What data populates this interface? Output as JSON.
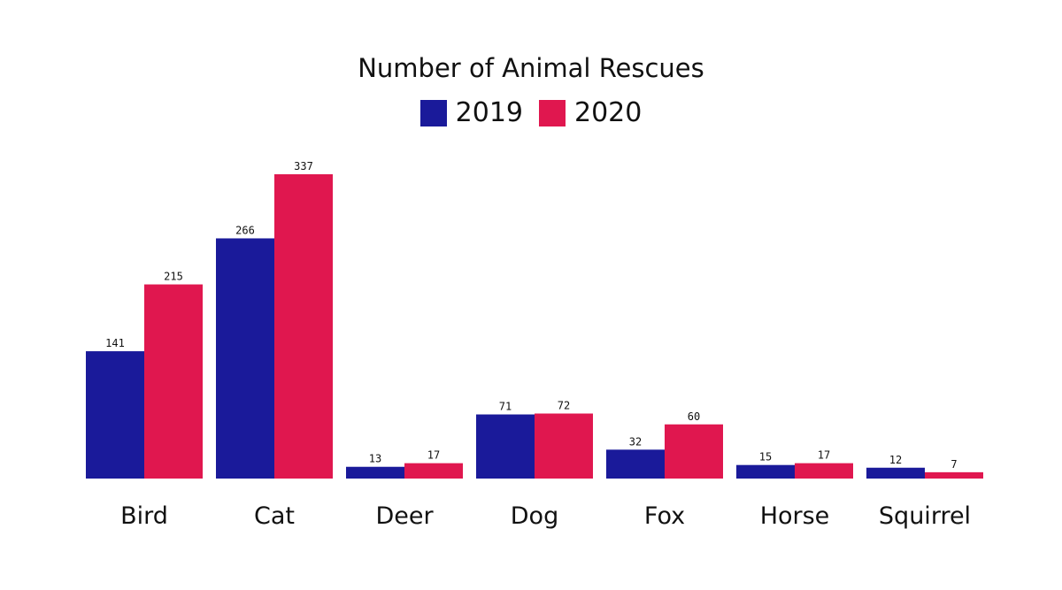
{
  "chart_data": {
    "type": "bar",
    "title": "Number of Animal Rescues",
    "categories": [
      "Bird",
      "Cat",
      "Deer",
      "Dog",
      "Fox",
      "Horse",
      "Squirrel"
    ],
    "series": [
      {
        "name": "2019",
        "color": "#1a1a9a",
        "values": [
          141,
          266,
          13,
          71,
          32,
          15,
          12
        ]
      },
      {
        "name": "2020",
        "color": "#e0174f",
        "values": [
          215,
          337,
          17,
          72,
          60,
          17,
          7
        ]
      }
    ],
    "xlabel": "",
    "ylabel": "",
    "ylim": [
      0,
      337
    ],
    "grid": false,
    "legend_position": "top-center",
    "data_labels": true
  }
}
